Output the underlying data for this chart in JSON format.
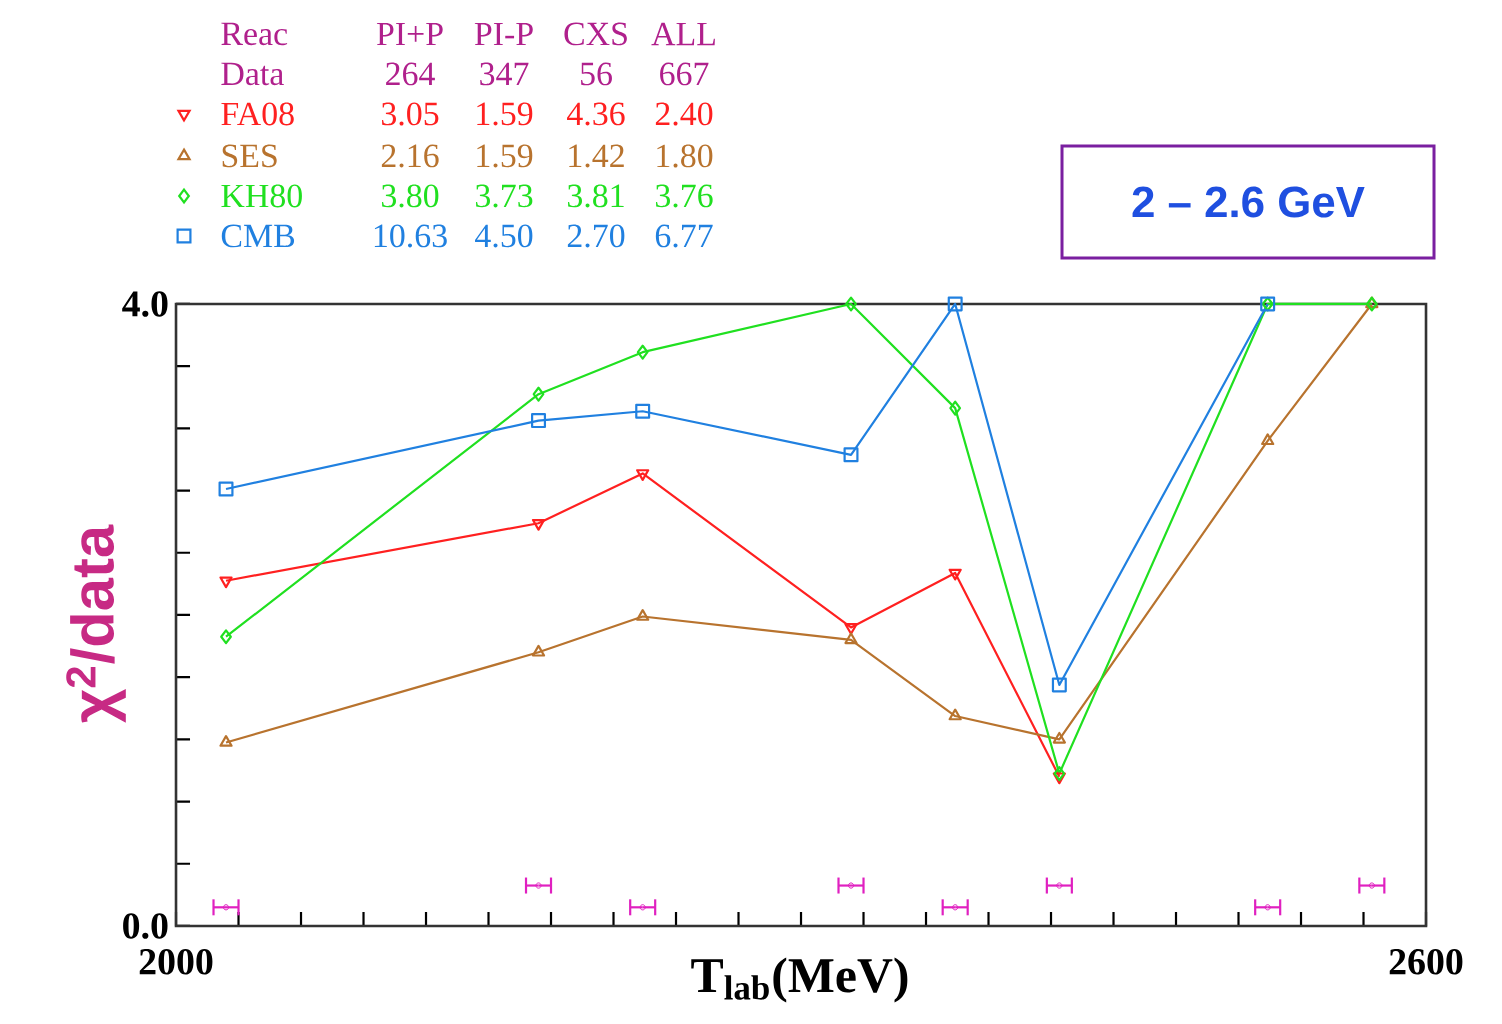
{
  "chart_data": {
    "type": "line",
    "title": "2 – 2.6 GeV",
    "xlabel": "T$_{lab}$(MeV)",
    "ylabel": "χ$^{2}$/data",
    "x": [
      2024,
      2174,
      2224,
      2324,
      2374,
      2424,
      2524,
      2574
    ],
    "series": [
      {
        "name": "FA08",
        "color": "#ff2020",
        "marker": "triangle_down",
        "values": [
          2.22,
          2.59,
          2.91,
          1.92,
          2.27,
          0.96,
          null,
          null
        ]
      },
      {
        "name": "SES",
        "color": "#b8732e",
        "marker": "triangle",
        "values": [
          1.18,
          1.76,
          1.99,
          1.84,
          1.35,
          1.2,
          3.12,
          4.0
        ]
      },
      {
        "name": "KH80",
        "color": "#20e020",
        "marker": "diamond",
        "values": [
          1.86,
          3.42,
          3.69,
          4.0,
          3.33,
          0.98,
          4.0,
          4.0
        ]
      },
      {
        "name": "CMB",
        "color": "#2080e0",
        "marker": "square",
        "values": [
          2.81,
          3.25,
          3.31,
          3.03,
          4.0,
          1.55,
          4.0,
          null
        ]
      },
      {
        "type": "scatter",
        "color": "#e020c0",
        "marker": "circle",
        "values": [
          0.12,
          0.26,
          0.12,
          0.26,
          0.12,
          0.26,
          0.12,
          0.26
        ],
        "xerrors": [
          6,
          6,
          6,
          6,
          6,
          6,
          6,
          6
        ]
      }
    ],
    "xlim": [
      2000,
      2600
    ],
    "ylim": [
      0,
      4.0
    ],
    "xticks": [
      2000,
      {
        "value": 2030,
        "label": null
      },
      {
        "value": 2060,
        "label": null
      },
      {
        "value": 2090,
        "label": null
      },
      {
        "value": 2120,
        "label": null
      },
      {
        "value": 2150,
        "label": null
      },
      {
        "value": 2180,
        "label": null
      },
      {
        "value": 2210,
        "label": null
      },
      {
        "value": 2240,
        "label": null
      },
      {
        "value": 2270,
        "label": null
      },
      {
        "value": 2300,
        "label": null
      },
      {
        "value": 2330,
        "label": null
      },
      {
        "value": 2360,
        "label": null
      },
      {
        "value": 2390,
        "label": null
      },
      {
        "value": 2420,
        "label": null
      },
      {
        "value": 2450,
        "label": null
      },
      {
        "value": 2480,
        "label": null
      },
      {
        "value": 2510,
        "label": null
      },
      {
        "value": 2540,
        "label": null
      },
      {
        "value": 2570,
        "label": null
      },
      2600
    ],
    "yticks": [
      {
        "value": 0,
        "label": "0.0"
      },
      {
        "value": 0.4,
        "label": null
      },
      {
        "value": 0.8,
        "label": null
      },
      {
        "value": 1.2,
        "label": null
      },
      {
        "value": 1.6,
        "label": null
      },
      {
        "value": 2.0,
        "label": null
      },
      {
        "value": 2.4,
        "label": null
      },
      {
        "value": 2.8,
        "label": null
      },
      {
        "value": 3.2,
        "label": null
      },
      {
        "value": 3.6,
        "label": null
      },
      {
        "value": 4.0,
        "label": "4.0"
      }
    ],
    "legend": "top left",
    "annotations": [
      "Reac",
      "PI+P",
      "PI-P",
      "CXS",
      "ALL",
      "Data",
      "264",
      "347",
      "56",
      "667",
      "3.05",
      "1.59",
      "4.36",
      "2.40",
      "2.16",
      "1.59",
      "1.42",
      "1.80",
      "3.80",
      "3.73",
      "3.81",
      "3.76",
      "10.63",
      "4.50",
      "2.70",
      "6.77"
    ]
  }
}
